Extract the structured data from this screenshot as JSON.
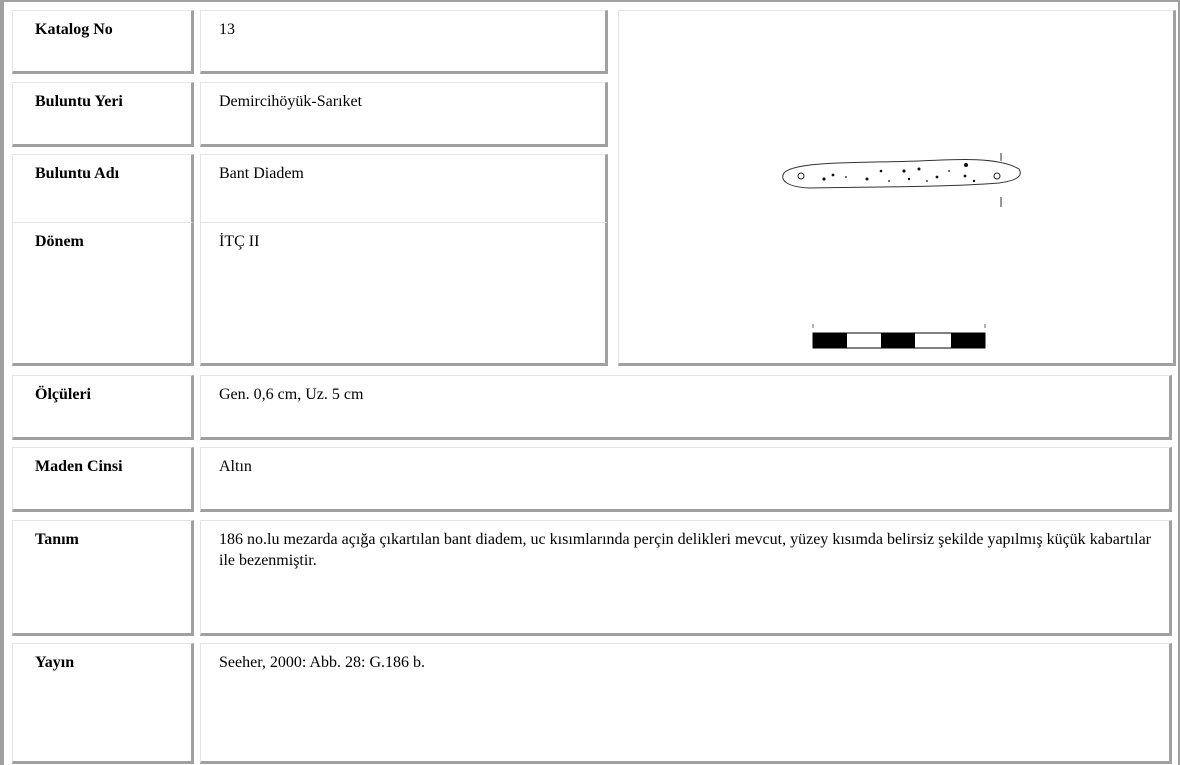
{
  "table": {
    "rows": [
      {
        "label": "Katalog No",
        "value": "13"
      },
      {
        "label": "Buluntu Yeri",
        "value": "Demircihöyük-Sarıket"
      },
      {
        "label": "Buluntu Adı",
        "value": "Bant Diadem"
      },
      {
        "label": "Dönem",
        "value": "İTÇ II"
      },
      {
        "label": "Ölçüleri",
        "value": "Gen. 0,6 cm, Uz. 5 cm"
      },
      {
        "label": "Maden Cinsi",
        "value": "Altın"
      },
      {
        "label": "Tanım",
        "value": "186 no.lu mezarda açığa çıkartılan bant diadem, uc kısımlarında perçin delikleri mevcut, yüzey kısımda belirsiz şekilde yapılmış küçük kabartılar ile bezenmiştir."
      },
      {
        "label": "Yayın",
        "value": "Seeher, 2000: Abb. 28: G.186 b."
      }
    ]
  }
}
